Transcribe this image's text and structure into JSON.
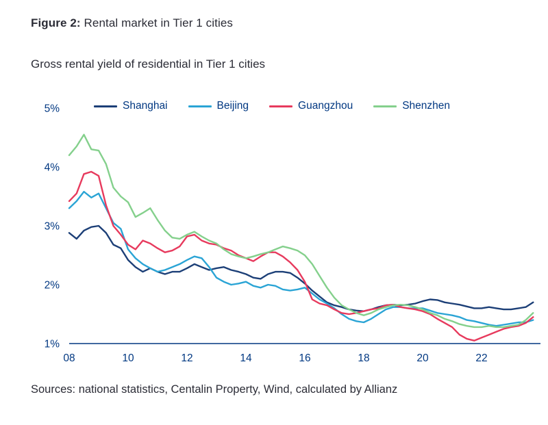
{
  "figure": {
    "label": "Figure 2:",
    "title": "Rental market in Tier 1 cities",
    "subtitle": "Gross rental yield of residential in Tier 1 cities",
    "source": "Sources: national statistics, Centalin Property, Wind, calculated by Allianz"
  },
  "colors": {
    "axis_text": "#003781",
    "axis_line": "#003781",
    "body_text": "#2b2c36"
  },
  "chart_data": {
    "type": "line",
    "title": "Gross rental yield of residential in Tier 1 cities",
    "xlabel": "",
    "ylabel": "",
    "xlim": [
      2008,
      2024
    ],
    "ylim": [
      1,
      5
    ],
    "grid": false,
    "legend_position": "top",
    "y_ticks": [
      {
        "value": 5,
        "label": "5%"
      },
      {
        "value": 4,
        "label": "4%"
      },
      {
        "value": 3,
        "label": "3%"
      },
      {
        "value": 2,
        "label": "2%"
      },
      {
        "value": 1,
        "label": "1%"
      }
    ],
    "x_ticks": [
      {
        "value": 2008,
        "label": "08"
      },
      {
        "value": 2010,
        "label": "10"
      },
      {
        "value": 2012,
        "label": "12"
      },
      {
        "value": 2014,
        "label": "14"
      },
      {
        "value": 2016,
        "label": "16"
      },
      {
        "value": 2018,
        "label": "18"
      },
      {
        "value": 2020,
        "label": "20"
      },
      {
        "value": 2022,
        "label": "22"
      }
    ],
    "x": [
      2008,
      2008.25,
      2008.5,
      2008.75,
      2009,
      2009.25,
      2009.5,
      2009.75,
      2010,
      2010.25,
      2010.5,
      2010.75,
      2011,
      2011.25,
      2011.5,
      2011.75,
      2012,
      2012.25,
      2012.5,
      2012.75,
      2013,
      2013.25,
      2013.5,
      2013.75,
      2014,
      2014.25,
      2014.5,
      2014.75,
      2015,
      2015.25,
      2015.5,
      2015.75,
      2016,
      2016.25,
      2016.5,
      2016.75,
      2017,
      2017.25,
      2017.5,
      2017.75,
      2018,
      2018.25,
      2018.5,
      2018.75,
      2019,
      2019.25,
      2019.5,
      2019.75,
      2020,
      2020.25,
      2020.5,
      2020.75,
      2021,
      2021.25,
      2021.5,
      2021.75,
      2022,
      2022.25,
      2022.5,
      2022.75,
      2023,
      2023.25,
      2023.5,
      2023.75
    ],
    "series": [
      {
        "name": "Shanghai",
        "color": "#1c3f77",
        "values": [
          2.88,
          2.78,
          2.92,
          2.98,
          3.0,
          2.88,
          2.68,
          2.62,
          2.42,
          2.3,
          2.22,
          2.28,
          2.22,
          2.18,
          2.22,
          2.22,
          2.28,
          2.35,
          2.3,
          2.25,
          2.28,
          2.3,
          2.25,
          2.22,
          2.18,
          2.12,
          2.1,
          2.18,
          2.22,
          2.22,
          2.2,
          2.12,
          2.02,
          1.9,
          1.8,
          1.7,
          1.65,
          1.62,
          1.58,
          1.56,
          1.55,
          1.58,
          1.62,
          1.65,
          1.66,
          1.65,
          1.66,
          1.68,
          1.72,
          1.75,
          1.74,
          1.7,
          1.68,
          1.66,
          1.63,
          1.6,
          1.6,
          1.62,
          1.6,
          1.58,
          1.58,
          1.6,
          1.62,
          1.7
        ]
      },
      {
        "name": "Beijing",
        "color": "#2aa4d5",
        "values": [
          3.3,
          3.42,
          3.58,
          3.48,
          3.55,
          3.3,
          3.05,
          2.95,
          2.6,
          2.45,
          2.35,
          2.28,
          2.22,
          2.25,
          2.3,
          2.35,
          2.42,
          2.48,
          2.45,
          2.3,
          2.12,
          2.05,
          2.0,
          2.02,
          2.05,
          1.98,
          1.95,
          2.0,
          1.98,
          1.92,
          1.9,
          1.92,
          1.95,
          1.85,
          1.75,
          1.68,
          1.6,
          1.5,
          1.42,
          1.38,
          1.36,
          1.42,
          1.5,
          1.58,
          1.62,
          1.62,
          1.6,
          1.6,
          1.6,
          1.56,
          1.52,
          1.5,
          1.48,
          1.45,
          1.4,
          1.38,
          1.35,
          1.32,
          1.3,
          1.32,
          1.34,
          1.36,
          1.36,
          1.4
        ]
      },
      {
        "name": "Guangzhou",
        "color": "#e73a5d",
        "values": [
          3.42,
          3.55,
          3.88,
          3.92,
          3.85,
          3.35,
          3.0,
          2.85,
          2.68,
          2.6,
          2.75,
          2.7,
          2.62,
          2.55,
          2.58,
          2.65,
          2.82,
          2.85,
          2.75,
          2.7,
          2.68,
          2.62,
          2.58,
          2.5,
          2.45,
          2.4,
          2.48,
          2.55,
          2.55,
          2.48,
          2.38,
          2.25,
          2.05,
          1.75,
          1.68,
          1.65,
          1.58,
          1.52,
          1.5,
          1.52,
          1.55,
          1.58,
          1.6,
          1.65,
          1.66,
          1.62,
          1.6,
          1.58,
          1.55,
          1.5,
          1.42,
          1.35,
          1.28,
          1.15,
          1.08,
          1.05,
          1.1,
          1.15,
          1.2,
          1.25,
          1.28,
          1.3,
          1.35,
          1.45
        ]
      },
      {
        "name": "Shenzhen",
        "color": "#84d08c",
        "values": [
          4.2,
          4.35,
          4.55,
          4.3,
          4.28,
          4.05,
          3.65,
          3.5,
          3.4,
          3.15,
          3.22,
          3.3,
          3.1,
          2.92,
          2.8,
          2.78,
          2.85,
          2.9,
          2.82,
          2.75,
          2.7,
          2.6,
          2.52,
          2.48,
          2.45,
          2.48,
          2.52,
          2.55,
          2.6,
          2.65,
          2.62,
          2.58,
          2.5,
          2.35,
          2.15,
          1.95,
          1.78,
          1.65,
          1.58,
          1.52,
          1.48,
          1.52,
          1.58,
          1.62,
          1.65,
          1.66,
          1.65,
          1.62,
          1.58,
          1.52,
          1.48,
          1.42,
          1.38,
          1.33,
          1.3,
          1.28,
          1.28,
          1.3,
          1.28,
          1.28,
          1.3,
          1.32,
          1.4,
          1.52
        ]
      }
    ]
  }
}
